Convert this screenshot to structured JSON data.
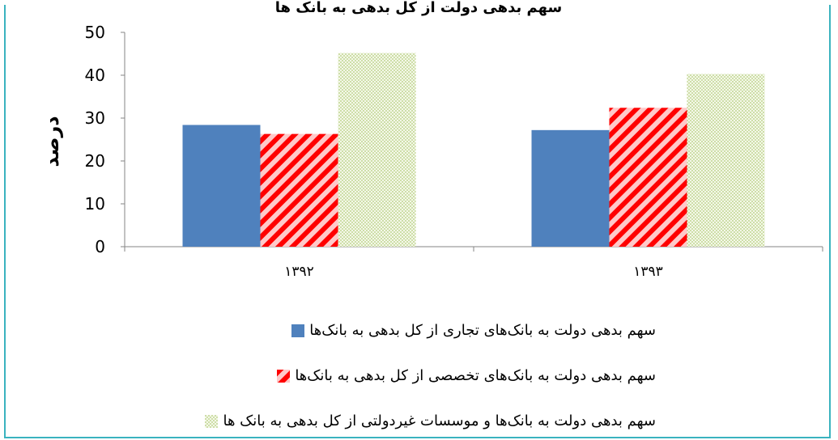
{
  "chart_data": {
    "type": "bar",
    "title": "سهم بدهی دولت از کل بدهی به بانک ها",
    "ylabel": "درصد",
    "xlabel": "",
    "ylim": [
      0,
      50
    ],
    "yticks": [
      "0",
      "10",
      "20",
      "30",
      "40",
      "50"
    ],
    "categories": [
      "۱۳۹۲",
      "۱۳۹۳"
    ],
    "grid": false,
    "legend_position": "bottom",
    "series": [
      {
        "name": "سهم بدهی دولت به بانک‌های تجاری از کل بدهی به بانک‌ها",
        "values": [
          28.4,
          27.2
        ],
        "color": "#4f81bd",
        "pattern": "solid"
      },
      {
        "name": "سهم بدهی دولت به بانک‌های تخصصی از کل بدهی به بانک‌ها",
        "values": [
          26.3,
          32.4
        ],
        "color": "#ff0000",
        "pattern": "diagonal-stripes"
      },
      {
        "name": "سهم بدهی دولت به بانک‌ها و موسسات غیردولتی از کل بدهی به بانک ها",
        "values": [
          45.2,
          40.3
        ],
        "color": "#9bbb59",
        "pattern": "dots"
      }
    ]
  }
}
